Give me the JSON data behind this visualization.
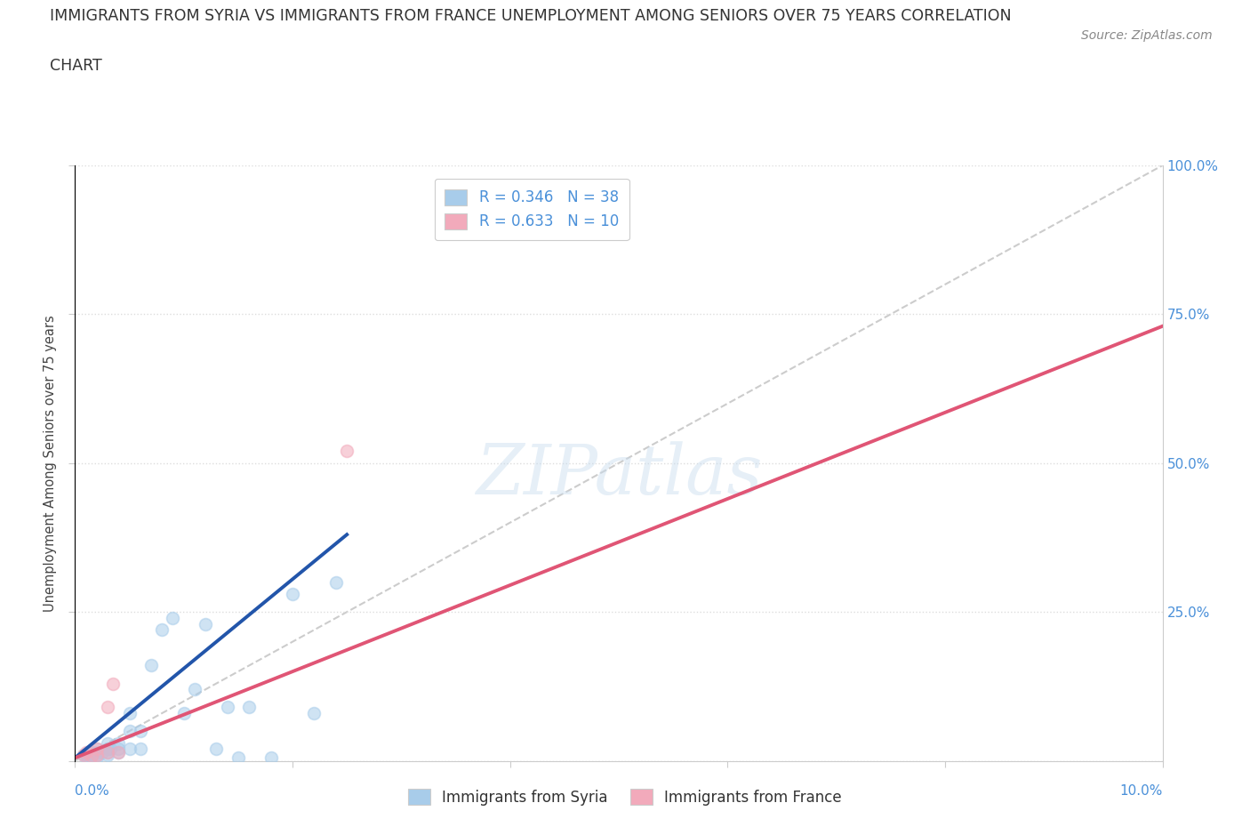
{
  "title_line1": "IMMIGRANTS FROM SYRIA VS IMMIGRANTS FROM FRANCE UNEMPLOYMENT AMONG SENIORS OVER 75 YEARS CORRELATION",
  "title_line2": "CHART",
  "source": "Source: ZipAtlas.com",
  "ylabel": "Unemployment Among Seniors over 75 years",
  "xlim": [
    0.0,
    0.1
  ],
  "ylim": [
    0.0,
    1.0
  ],
  "xticks": [
    0.0,
    0.02,
    0.04,
    0.06,
    0.08,
    0.1
  ],
  "yticks": [
    0.0,
    0.25,
    0.5,
    0.75,
    1.0
  ],
  "xticklabels_left": "0.0%",
  "xticklabels_right": "10.0%",
  "yticklabels": [
    "",
    "25.0%",
    "50.0%",
    "75.0%",
    "100.0%"
  ],
  "syria_color": "#A8CCEA",
  "france_color": "#F2AABB",
  "syria_line_color": "#2255AA",
  "france_line_color": "#E05575",
  "ref_line_color": "#C0C0C0",
  "syria_R": 0.346,
  "syria_N": 38,
  "france_R": 0.633,
  "france_N": 10,
  "syria_scatter_x": [
    0.0008,
    0.001,
    0.001,
    0.0012,
    0.0015,
    0.0015,
    0.002,
    0.002,
    0.002,
    0.002,
    0.0025,
    0.003,
    0.003,
    0.003,
    0.003,
    0.0032,
    0.004,
    0.004,
    0.004,
    0.005,
    0.005,
    0.005,
    0.006,
    0.006,
    0.007,
    0.008,
    0.009,
    0.01,
    0.011,
    0.012,
    0.013,
    0.014,
    0.015,
    0.016,
    0.018,
    0.02,
    0.022,
    0.024
  ],
  "syria_scatter_y": [
    0.01,
    0.005,
    0.01,
    0.005,
    0.008,
    0.015,
    0.005,
    0.01,
    0.015,
    0.02,
    0.015,
    0.01,
    0.015,
    0.02,
    0.03,
    0.02,
    0.015,
    0.02,
    0.03,
    0.02,
    0.05,
    0.08,
    0.02,
    0.05,
    0.16,
    0.22,
    0.24,
    0.08,
    0.12,
    0.23,
    0.02,
    0.09,
    0.005,
    0.09,
    0.005,
    0.28,
    0.08,
    0.3
  ],
  "france_scatter_x": [
    0.0008,
    0.001,
    0.0015,
    0.002,
    0.002,
    0.003,
    0.003,
    0.0035,
    0.004,
    0.025
  ],
  "france_scatter_y": [
    0.01,
    0.015,
    0.008,
    0.01,
    0.02,
    0.015,
    0.09,
    0.13,
    0.015,
    0.52
  ],
  "syria_trend_x": [
    0.0,
    0.025
  ],
  "syria_trend_y": [
    0.005,
    0.38
  ],
  "france_trend_x": [
    0.0,
    0.1
  ],
  "france_trend_y": [
    0.005,
    0.73
  ],
  "ref_line_x": [
    0.0,
    0.1
  ],
  "ref_line_y": [
    0.0,
    1.0
  ],
  "watermark": "ZIPatlas",
  "background_color": "#FFFFFF",
  "grid_color": "#DDDDDD",
  "tick_color": "#4A90D9",
  "title_fontsize": 12.5,
  "axis_label_fontsize": 10.5,
  "tick_fontsize": 11,
  "legend_fontsize": 12,
  "marker_size": 100,
  "marker_alpha": 0.55,
  "marker_edge_width": 1.2
}
